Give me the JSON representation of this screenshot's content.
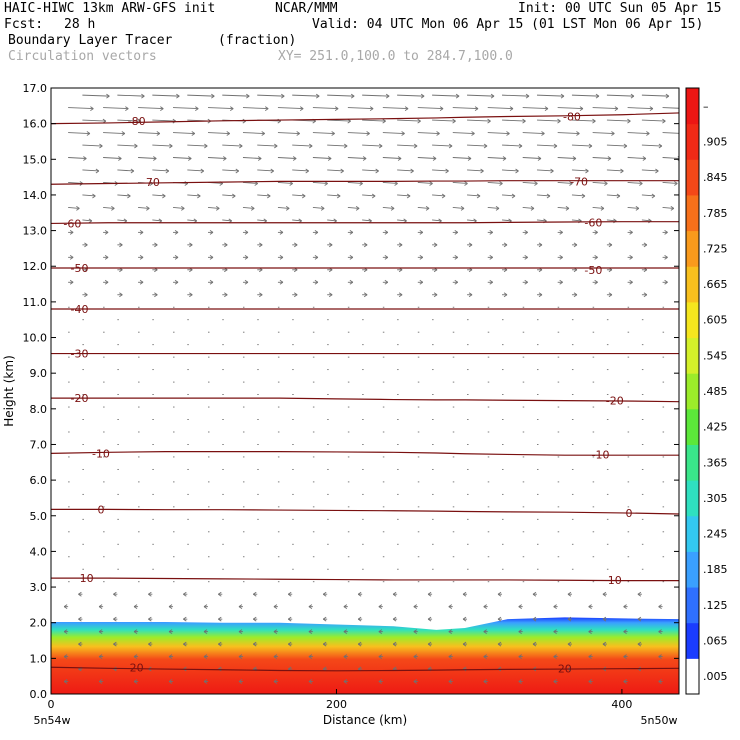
{
  "header": {
    "model": "HAIC-HIWC 13km ARW-GFS init",
    "org": "NCAR/MMM",
    "init": "Init: 00 UTC Sun 05 Apr 15",
    "fcst_label": "Fcst:",
    "fcst_value": "28 h",
    "valid": "Valid: 04 UTC Mon 06 Apr 15 (01 LST Mon 06 Apr 15)",
    "field": "Boundary Layer Tracer",
    "units": "(fraction)",
    "vectors": "Circulation vectors",
    "xy": "XY= 251.0,100.0 to 284.7,100.0"
  },
  "chart_data": {
    "type": "heatmap",
    "title": "Boundary Layer Tracer (fraction)",
    "xlabel": "Distance (km)",
    "ylabel": "Height (km)",
    "xlim": [
      0,
      440
    ],
    "ylim": [
      0,
      17
    ],
    "x_ticks": [
      0,
      200,
      400
    ],
    "x_end_labels": [
      "5n54w",
      "5n50w"
    ],
    "y_ticks": [
      "0.0",
      "1.0",
      "2.0",
      "3.0",
      "4.0",
      "5.0",
      "6.0",
      "7.0",
      "8.0",
      "9.0",
      "10.0",
      "11.0",
      "12.0",
      "13.0",
      "14.0",
      "15.0",
      "16.0",
      "17.0"
    ],
    "colorbar": {
      "labels": [
        ".005",
        ".065",
        ".125",
        ".185",
        ".245",
        ".305",
        ".365",
        ".425",
        ".485",
        ".545",
        ".605",
        ".665",
        ".725",
        ".785",
        ".845",
        ".905",
        "–"
      ],
      "colors": [
        "#ffffff",
        "#1a3cff",
        "#2f70ff",
        "#3aa0ff",
        "#33c8f0",
        "#2fe0c0",
        "#3ae68a",
        "#5ce83a",
        "#9cec2a",
        "#d4f02a",
        "#f5e61e",
        "#f8c01e",
        "#f99a1c",
        "#f7701a",
        "#f44818",
        "#f02a16",
        "#ec1614"
      ]
    },
    "tracer_top_km": [
      2.02,
      2.02,
      2.02,
      2.0,
      2.0,
      1.95,
      1.9,
      1.8,
      1.85,
      2.1,
      2.15,
      2.12,
      2.1
    ],
    "tracer_x_km": [
      0,
      40,
      80,
      120,
      160,
      200,
      240,
      270,
      290,
      320,
      360,
      400,
      440
    ],
    "temperature_contours": [
      {
        "label": "20",
        "y": [
          0.75,
          0.72,
          0.7,
          0.68,
          0.66,
          0.65,
          0.66,
          0.67,
          0.68,
          0.69,
          0.7,
          0.71,
          0.72
        ],
        "label_at": [
          [
            60,
            0.75
          ],
          [
            360,
            0.72
          ]
        ]
      },
      {
        "label": "10",
        "y": [
          3.25,
          3.25,
          3.24,
          3.23,
          3.22,
          3.21,
          3.2,
          3.2,
          3.2,
          3.2,
          3.19,
          3.18,
          3.18
        ],
        "label_at": [
          [
            25,
            3.25
          ],
          [
            395,
            3.2
          ]
        ]
      },
      {
        "label": "0",
        "y": [
          5.18,
          5.18,
          5.17,
          5.17,
          5.16,
          5.15,
          5.14,
          5.13,
          5.12,
          5.11,
          5.1,
          5.08,
          5.05
        ],
        "label_at": [
          [
            35,
            5.17
          ],
          [
            405,
            5.08
          ]
        ]
      },
      {
        "label": "-10",
        "y": [
          6.75,
          6.78,
          6.8,
          6.8,
          6.8,
          6.79,
          6.78,
          6.76,
          6.74,
          6.72,
          6.7,
          6.7,
          6.7
        ],
        "label_at": [
          [
            35,
            6.75
          ],
          [
            385,
            6.72
          ]
        ]
      },
      {
        "label": "-20",
        "y": [
          8.3,
          8.3,
          8.3,
          8.3,
          8.3,
          8.28,
          8.26,
          8.25,
          8.25,
          8.24,
          8.23,
          8.22,
          8.2
        ],
        "label_at": [
          [
            20,
            8.3
          ],
          [
            395,
            8.23
          ]
        ]
      },
      {
        "label": "-30",
        "y": [
          9.55,
          9.55,
          9.55,
          9.55,
          9.55,
          9.55,
          9.55,
          9.55,
          9.55,
          9.55,
          9.55,
          9.55,
          9.55
        ],
        "label_at": [
          [
            20,
            9.55
          ]
        ]
      },
      {
        "label": "-40",
        "y": [
          10.8,
          10.8,
          10.8,
          10.8,
          10.8,
          10.8,
          10.8,
          10.8,
          10.8,
          10.8,
          10.8,
          10.8,
          10.8
        ],
        "label_at": [
          [
            20,
            10.8
          ]
        ]
      },
      {
        "label": "-50",
        "y": [
          11.95,
          11.95,
          11.95,
          11.95,
          11.95,
          11.95,
          11.95,
          11.95,
          11.95,
          11.95,
          11.95,
          11.95,
          11.95
        ],
        "label_at": [
          [
            20,
            11.95
          ],
          [
            380,
            11.9
          ]
        ]
      },
      {
        "label": "-60",
        "y": [
          13.2,
          13.22,
          13.22,
          13.22,
          13.22,
          13.22,
          13.22,
          13.22,
          13.22,
          13.23,
          13.24,
          13.25,
          13.25
        ],
        "label_at": [
          [
            15,
            13.2
          ],
          [
            380,
            13.22
          ]
        ]
      },
      {
        "label": "-70",
        "y": [
          14.3,
          14.32,
          14.34,
          14.36,
          14.38,
          14.38,
          14.38,
          14.39,
          14.39,
          14.4,
          14.4,
          14.4,
          14.4
        ],
        "label_at": [
          [
            70,
            14.36
          ],
          [
            370,
            14.38
          ]
        ]
      },
      {
        "label": "-80",
        "y": [
          16.0,
          16.02,
          16.05,
          16.08,
          16.1,
          16.12,
          16.14,
          16.16,
          16.18,
          16.2,
          16.22,
          16.25,
          16.3
        ],
        "label_at": [
          [
            60,
            16.08
          ],
          [
            365,
            16.2
          ]
        ]
      }
    ],
    "vector_field_note": "Circulation vectors"
  }
}
